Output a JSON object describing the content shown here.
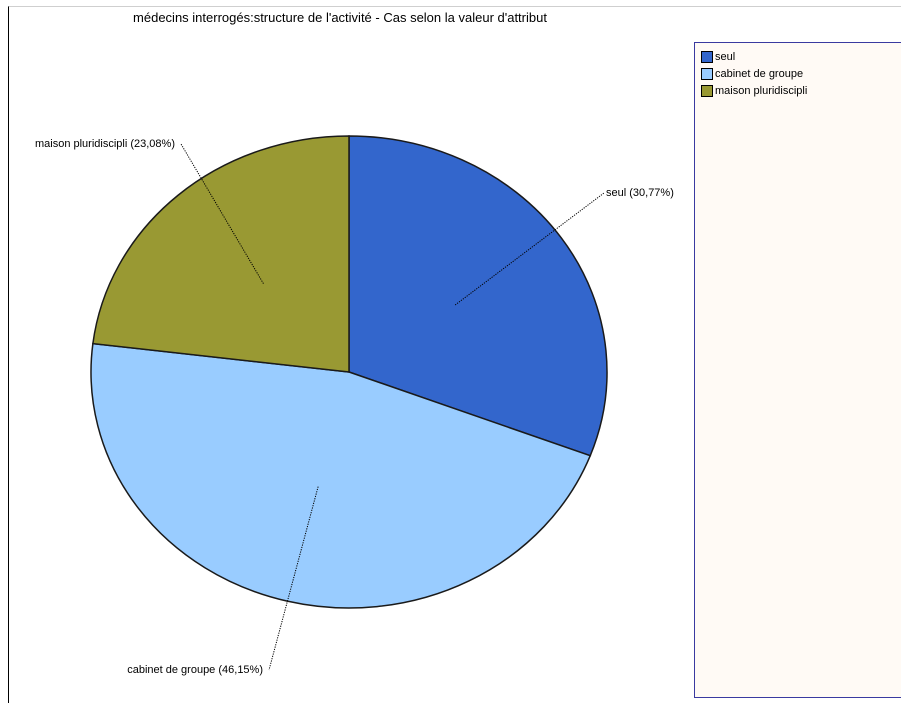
{
  "chart_data": {
    "type": "pie",
    "title": "médecins interrogés:structure de l'activité - Cas selon la valeur d'attribut",
    "slices": [
      {
        "name": "seul",
        "value": 30.77,
        "label": "seul (30,77%)",
        "color": "#3366cc"
      },
      {
        "name": "cabinet de groupe",
        "value": 46.15,
        "label": "cabinet de groupe (46,15%)",
        "color": "#99ccff"
      },
      {
        "name": "maison pluridiscipli",
        "value": 23.08,
        "label": "maison pluridiscipli (23,08%)",
        "color": "#999933"
      }
    ],
    "legend": {
      "placement": "right",
      "items": [
        "seul",
        "cabinet de groupe",
        "maison pluridiscipli"
      ]
    }
  }
}
